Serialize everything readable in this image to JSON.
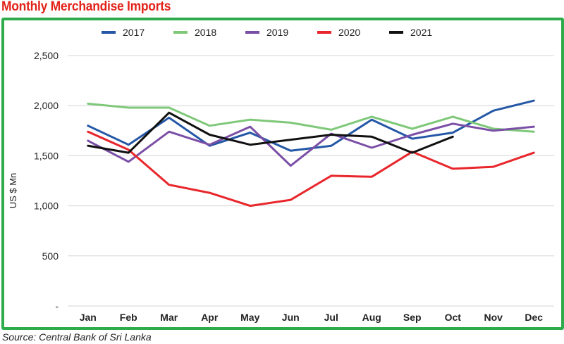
{
  "title": "Monthly Merchandise Imports",
  "source": "Source: Central Bank of Sri Lanka",
  "chart_data": {
    "type": "line",
    "title": "Monthly Merchandise Imports",
    "xlabel": "",
    "ylabel": "US $ Mn",
    "ylim": [
      0,
      2500
    ],
    "yticks": [
      0,
      500,
      1000,
      1500,
      2000,
      2500
    ],
    "ytick_labels": [
      "-",
      "500",
      "1,000",
      "1,500",
      "2,000",
      "2,500"
    ],
    "grid": "horizontal",
    "legend": "top",
    "categories": [
      "Jan",
      "Feb",
      "Mar",
      "Apr",
      "May",
      "Jun",
      "Jul",
      "Aug",
      "Sep",
      "Oct",
      "Nov",
      "Dec"
    ],
    "series": [
      {
        "name": "2017",
        "color": "#2457a6",
        "values": [
          1800,
          1610,
          1880,
          1600,
          1730,
          1550,
          1600,
          1860,
          1670,
          1730,
          1950,
          2050
        ]
      },
      {
        "name": "2018",
        "color": "#7fc87a",
        "values": [
          2020,
          1980,
          1980,
          1800,
          1860,
          1830,
          1760,
          1890,
          1770,
          1890,
          1770,
          1740
        ]
      },
      {
        "name": "2019",
        "color": "#7b4fa6",
        "values": [
          1650,
          1440,
          1740,
          1610,
          1790,
          1400,
          1720,
          1580,
          1710,
          1820,
          1750,
          1790
        ]
      },
      {
        "name": "2020",
        "color": "#e8262b",
        "values": [
          1740,
          1560,
          1210,
          1130,
          1000,
          1060,
          1300,
          1290,
          1540,
          1370,
          1390,
          1530
        ]
      },
      {
        "name": "2021",
        "color": "#111111",
        "values": [
          1600,
          1530,
          1930,
          1710,
          1610,
          1660,
          1710,
          1690,
          1530,
          1690,
          null,
          null
        ]
      }
    ]
  }
}
